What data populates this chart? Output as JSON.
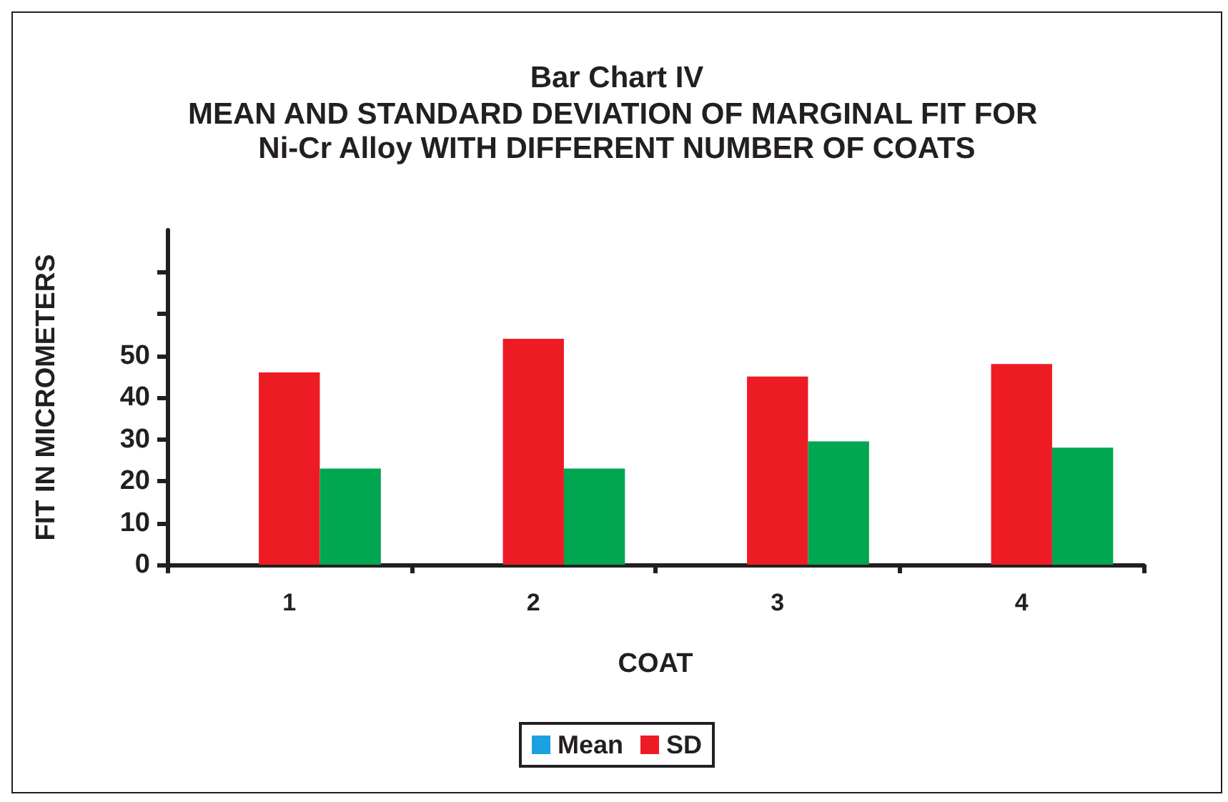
{
  "chart_data": {
    "type": "bar",
    "title": "Bar Chart IV",
    "subtitle": "MEAN AND STANDARD DEVIATION OF MARGINAL FIT FOR Ni-Cr Alloy WITH DIFFERENT NUMBER OF COATS",
    "xlabel": "COAT",
    "ylabel": "FIT IN MICROMETERS",
    "categories": [
      "1",
      "2",
      "3",
      "4"
    ],
    "series": [
      {
        "name": "Mean",
        "color": "#1ba1e2",
        "values": [
          null,
          null,
          null,
          null
        ]
      },
      {
        "name": "SD",
        "color": "#ed1c24",
        "values": [
          46,
          54,
          45,
          48
        ]
      },
      {
        "color": "#00a650",
        "values": [
          23,
          23,
          29.5,
          28
        ]
      }
    ],
    "ylim": [
      0,
      80
    ],
    "yticks": [
      0,
      10,
      20,
      30,
      40,
      50,
      {
        "value": 60,
        "label": null
      },
      {
        "value": 70,
        "label": null
      }
    ],
    "grid": false,
    "legend": "bottom"
  }
}
